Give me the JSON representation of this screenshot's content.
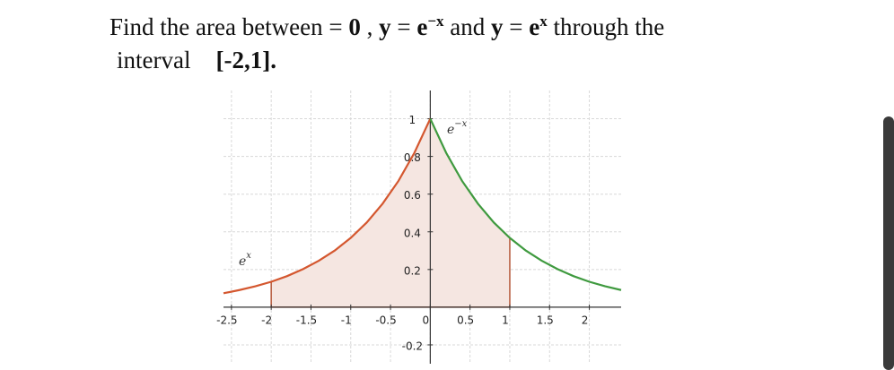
{
  "question": {
    "line1": [
      "Find the area between = ",
      "0",
      " , ",
      "y",
      " = ",
      "e",
      "−x",
      " and ",
      "y",
      " = ",
      "e",
      "x",
      " through the"
    ],
    "line2": [
      "interval",
      "[-2,1]."
    ]
  },
  "chart_data": {
    "type": "line",
    "x": [
      -2.6,
      -2.4,
      -2.2,
      -2.0,
      -1.8,
      -1.6,
      -1.4,
      -1.2,
      -1.0,
      -0.8,
      -0.6,
      -0.4,
      -0.2,
      0,
      0.2,
      0.4,
      0.6,
      0.8,
      1.0,
      1.2,
      1.4,
      1.6,
      1.8,
      2.0,
      2.2,
      2.4
    ],
    "series": [
      {
        "name": [
          "e",
          "x"
        ],
        "color": "#d4572f",
        "values": [
          0.074,
          0.091,
          0.111,
          0.135,
          0.165,
          0.202,
          0.247,
          0.301,
          0.368,
          0.449,
          0.549,
          0.67,
          0.819,
          1.0,
          null,
          null,
          null,
          null,
          null,
          null,
          null,
          null,
          null,
          null,
          null,
          null
        ]
      },
      {
        "name": [
          "e",
          "−x"
        ],
        "color": "#3f9a3f",
        "values": [
          null,
          null,
          null,
          null,
          null,
          null,
          null,
          null,
          null,
          null,
          null,
          null,
          null,
          1.0,
          0.819,
          0.67,
          0.549,
          0.449,
          0.368,
          0.301,
          0.247,
          0.202,
          0.165,
          0.135,
          0.111,
          0.091
        ]
      }
    ],
    "region": {
      "from": -2,
      "to": 1,
      "color": "#f5e6e1"
    },
    "xlim": [
      -2.6,
      2.4
    ],
    "ylim": [
      -0.3,
      1.15
    ],
    "xticks": [
      -2.5,
      -2,
      -1.5,
      -1,
      -0.5,
      0,
      0.5,
      1,
      1.5,
      2
    ],
    "yticks": [
      -0.2,
      0.2,
      0.4,
      0.6,
      0.8,
      1
    ],
    "grid": true
  }
}
